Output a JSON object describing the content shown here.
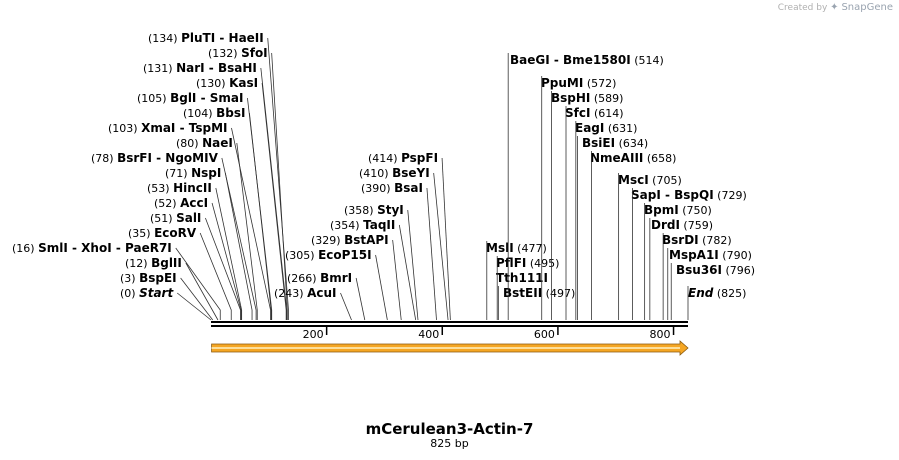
{
  "watermark": {
    "prefix": "Created by",
    "brand": "SnapGene"
  },
  "sequence": {
    "name": "mCerulean3-Actin-7",
    "length_label": "825 bp",
    "length": 825
  },
  "ruler": {
    "ticks": [
      200,
      400,
      600,
      800
    ]
  },
  "feature": {
    "start": 1,
    "end": 825,
    "color": "#f5a623"
  },
  "sites": [
    {
      "pos": 0,
      "names": [
        "Start"
      ],
      "italic": true,
      "label_side": "left"
    },
    {
      "pos": 3,
      "names": [
        "BspEI"
      ],
      "label_side": "left"
    },
    {
      "pos": 12,
      "names": [
        "BglII"
      ],
      "label_side": "left"
    },
    {
      "pos": 16,
      "names": [
        "SmlI",
        "XhoI",
        "PaeR7I"
      ],
      "label_side": "left"
    },
    {
      "pos": 35,
      "names": [
        "EcoRV"
      ],
      "label_side": "left"
    },
    {
      "pos": 51,
      "names": [
        "SalI"
      ],
      "label_side": "left"
    },
    {
      "pos": 52,
      "names": [
        "AccI"
      ],
      "label_side": "left"
    },
    {
      "pos": 53,
      "names": [
        "HincII"
      ],
      "label_side": "left"
    },
    {
      "pos": 71,
      "names": [
        "NspI"
      ],
      "label_side": "left"
    },
    {
      "pos": 78,
      "names": [
        "BsrFI",
        "NgoMIV"
      ],
      "label_side": "left"
    },
    {
      "pos": 80,
      "names": [
        "NaeI"
      ],
      "label_side": "left"
    },
    {
      "pos": 103,
      "names": [
        "XmaI",
        "TspMI"
      ],
      "label_side": "left"
    },
    {
      "pos": 104,
      "names": [
        "BbsI"
      ],
      "label_side": "left"
    },
    {
      "pos": 105,
      "names": [
        "BglI",
        "SmaI"
      ],
      "label_side": "left"
    },
    {
      "pos": 130,
      "names": [
        "KasI"
      ],
      "label_side": "left"
    },
    {
      "pos": 131,
      "names": [
        "NarI",
        "BsaHI"
      ],
      "label_side": "left"
    },
    {
      "pos": 132,
      "names": [
        "SfoI"
      ],
      "label_side": "left"
    },
    {
      "pos": 134,
      "names": [
        "PluTI",
        "HaeII"
      ],
      "label_side": "left"
    },
    {
      "pos": 243,
      "names": [
        "AcuI"
      ],
      "label_side": "left"
    },
    {
      "pos": 266,
      "names": [
        "BmrI"
      ],
      "label_side": "left"
    },
    {
      "pos": 305,
      "names": [
        "EcoP15I"
      ],
      "label_side": "left"
    },
    {
      "pos": 329,
      "names": [
        "BstAPI"
      ],
      "label_side": "left"
    },
    {
      "pos": 354,
      "names": [
        "TaqII"
      ],
      "label_side": "left"
    },
    {
      "pos": 358,
      "names": [
        "StyI"
      ],
      "label_side": "left"
    },
    {
      "pos": 390,
      "names": [
        "BsaI"
      ],
      "label_side": "left"
    },
    {
      "pos": 410,
      "names": [
        "BseYI"
      ],
      "label_side": "left"
    },
    {
      "pos": 414,
      "names": [
        "PspFI"
      ],
      "label_side": "left"
    },
    {
      "pos": 477,
      "names": [
        "MslI"
      ],
      "label_side": "right"
    },
    {
      "pos": 495,
      "names": [
        "PflFI",
        "Tth111I"
      ],
      "label_side": "right"
    },
    {
      "pos": 497,
      "names": [
        "BstEII"
      ],
      "label_side": "right"
    },
    {
      "pos": 514,
      "names": [
        "BaeGI",
        "Bme1580I"
      ],
      "label_side": "right"
    },
    {
      "pos": 572,
      "names": [
        "PpuMI"
      ],
      "label_side": "right"
    },
    {
      "pos": 589,
      "names": [
        "BspHI"
      ],
      "label_side": "right"
    },
    {
      "pos": 614,
      "names": [
        "SfcI"
      ],
      "label_side": "right"
    },
    {
      "pos": 631,
      "names": [
        "EagI"
      ],
      "label_side": "right"
    },
    {
      "pos": 634,
      "names": [
        "BsiEI"
      ],
      "label_side": "right"
    },
    {
      "pos": 658,
      "names": [
        "NmeAIII"
      ],
      "label_side": "right"
    },
    {
      "pos": 705,
      "names": [
        "MscI"
      ],
      "label_side": "right"
    },
    {
      "pos": 729,
      "names": [
        "SapI",
        "BspQI"
      ],
      "label_side": "right"
    },
    {
      "pos": 750,
      "names": [
        "BpmI"
      ],
      "label_side": "right"
    },
    {
      "pos": 759,
      "names": [
        "DrdI"
      ],
      "label_side": "right"
    },
    {
      "pos": 782,
      "names": [
        "BsrDI"
      ],
      "label_side": "right"
    },
    {
      "pos": 790,
      "names": [
        "MspA1I"
      ],
      "label_side": "right"
    },
    {
      "pos": 796,
      "names": [
        "Bsu36I"
      ],
      "label_side": "right"
    },
    {
      "pos": 825,
      "names": [
        "End"
      ],
      "italic": true,
      "label_side": "right"
    }
  ]
}
